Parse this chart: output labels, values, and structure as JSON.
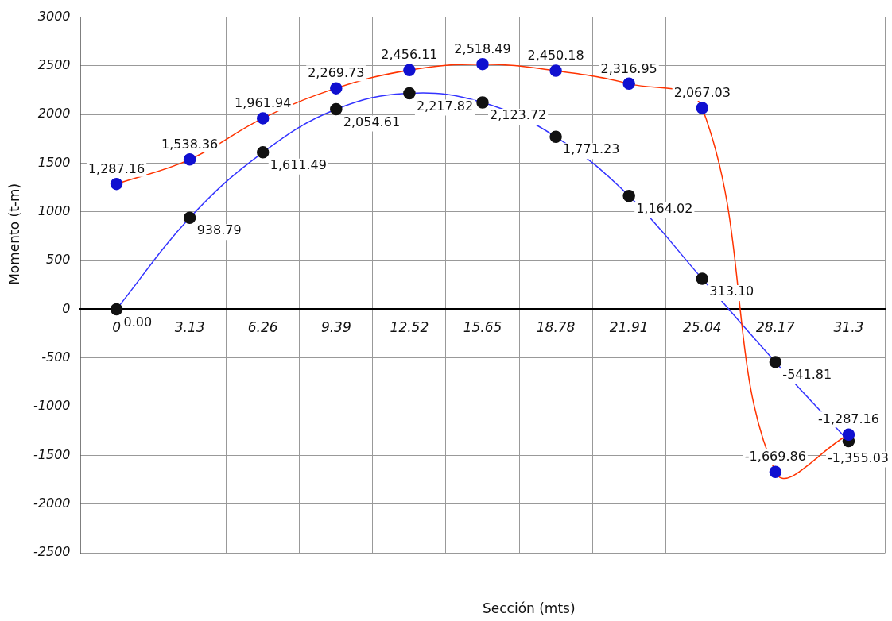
{
  "chart_data": {
    "type": "line",
    "xlabel": "Sección (mts)",
    "ylabel": "Momento (t-m)",
    "categories": [
      "0",
      "3.13",
      "6.26",
      "9.39",
      "12.52",
      "15.65",
      "18.78",
      "21.91",
      "25.04",
      "28.17",
      "31.3"
    ],
    "series": [
      {
        "color": "#ff3300",
        "colors": [
          "#1010d0",
          "#1010d0",
          "#1010d0",
          "#1010d0",
          "#1010d0",
          "#1010d0",
          "#1010d0",
          "#1010d0",
          "#1010d0",
          "#1010d0",
          "#1010d0"
        ],
        "values": [
          1287.16,
          1538.36,
          1961.94,
          2269.73,
          2456.11,
          2518.49,
          2450.18,
          2316.95,
          2067.03,
          -1669.86,
          -1287.16
        ],
        "value_labels": [
          "1,287.16",
          "1,538.36",
          "1,961.94",
          "2,269.73",
          "2,456.11",
          "2,518.49",
          "2,450.18",
          "2,316.95",
          "2,067.03",
          "-1,669.86",
          "-1,287.16"
        ]
      },
      {
        "color": "#3333ff",
        "colors": [
          "#111111",
          "#111111",
          "#111111",
          "#111111",
          "#111111",
          "#111111",
          "#111111",
          "#111111",
          "#111111",
          "#111111",
          "#111111"
        ],
        "values": [
          0,
          938.79,
          1611.49,
          2054.61,
          2217.82,
          2123.72,
          1771.23,
          1164.02,
          313.1,
          -541.81,
          -1355.03
        ],
        "value_labels": [
          "0.00",
          "938.79",
          "1,611.49",
          "2,054.61",
          "2,217.82",
          "2,123.72",
          "1,771.23",
          "1,164.02",
          "313.10",
          "-541.81",
          "-1,355.03"
        ]
      }
    ],
    "ylim": [
      -2500,
      3000
    ],
    "yticks": [
      -2500,
      -2000,
      -1500,
      -1000,
      -500,
      0,
      500,
      1000,
      1500,
      2000,
      2500,
      3000
    ],
    "grid": true,
    "legend": false,
    "marker": "circle",
    "line_style": "solid"
  }
}
